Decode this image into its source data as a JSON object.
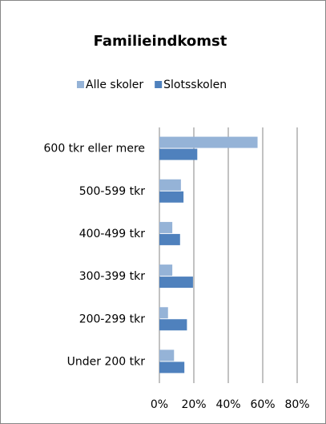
{
  "chart_data": {
    "type": "hbar",
    "title": "Familieindkomst",
    "categories": [
      "600 tkr eller mere",
      "500-599 tkr",
      "400-499 tkr",
      "300-399 tkr",
      "200-299 tkr",
      "Under 200 tkr"
    ],
    "series": [
      {
        "name": "Alle skoler",
        "color": "#95b3d7",
        "values": [
          57,
          12.5,
          7.5,
          7.5,
          5,
          8.5
        ]
      },
      {
        "name": "Slotsskolen",
        "color": "#4f81bd",
        "values": [
          22,
          14,
          12,
          19.5,
          16,
          14.5
        ]
      }
    ],
    "xlim": [
      0,
      80
    ],
    "xticks": [
      {
        "value": 0,
        "label": "0%"
      },
      {
        "value": 20,
        "label": "20%"
      },
      {
        "value": 40,
        "label": "40%"
      },
      {
        "value": 60,
        "label": "60%"
      },
      {
        "value": 80,
        "label": "80%"
      }
    ],
    "grid": true,
    "legend": "top"
  }
}
